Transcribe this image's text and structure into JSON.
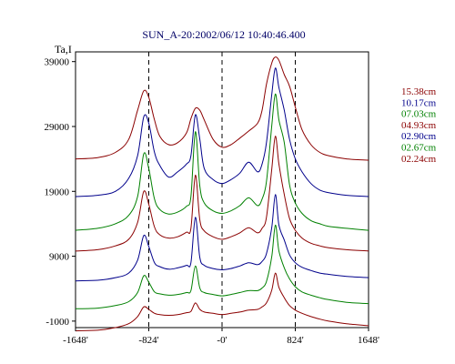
{
  "chart_data": {
    "type": "line",
    "title": "SUN_A-20:2002/06/12 10:40:46.400",
    "ylabel": "Ta,I",
    "xlabel": "",
    "x_ticks": [
      "-1648'",
      "-824'",
      "-0'",
      "824'",
      "1648'"
    ],
    "x_tick_values": [
      -1648,
      -824,
      0,
      824,
      1648
    ],
    "y_ticks": [
      "-1000",
      "9000",
      "19000",
      "29000",
      "39000"
    ],
    "y_tick_values": [
      -1000,
      9000,
      19000,
      29000,
      39000
    ],
    "xlim": [
      -1648,
      1648
    ],
    "ylim": [
      -2000,
      40500
    ],
    "reference_lines_x": [
      -824,
      0,
      824
    ],
    "grid": false,
    "legend_position": "right",
    "series": [
      {
        "name": "15.38cm",
        "color": "#8b0000",
        "x": [
          -1648,
          -1400,
          -1200,
          -1050,
          -950,
          -880,
          -824,
          -760,
          -700,
          -600,
          -500,
          -400,
          -350,
          -300,
          -250,
          -200,
          -100,
          0,
          100,
          200,
          300,
          400,
          450,
          500,
          560,
          600,
          640,
          700,
          760,
          824,
          900,
          1000,
          1100,
          1200,
          1400,
          1648
        ],
        "y": [
          24000,
          24200,
          25000,
          27000,
          31500,
          34500,
          33500,
          30000,
          27500,
          26200,
          26500,
          28000,
          30200,
          31800,
          31500,
          30000,
          27000,
          25800,
          26200,
          27200,
          28300,
          29500,
          31500,
          35500,
          38800,
          39700,
          39200,
          37000,
          35200,
          32000,
          28500,
          26200,
          25000,
          24500,
          24000,
          23800
        ]
      },
      {
        "name": "10.17cm",
        "color": "#00008b",
        "x": [
          -1648,
          -1400,
          -1200,
          -1050,
          -950,
          -880,
          -824,
          -760,
          -700,
          -600,
          -500,
          -400,
          -350,
          -300,
          -250,
          -200,
          -100,
          0,
          100,
          200,
          300,
          400,
          450,
          500,
          560,
          600,
          640,
          700,
          760,
          824,
          900,
          1000,
          1100,
          1200,
          1400,
          1648
        ],
        "y": [
          18200,
          18400,
          19000,
          21000,
          24500,
          30500,
          29500,
          25000,
          23000,
          21200,
          22000,
          23200,
          24500,
          30800,
          27000,
          22500,
          20800,
          20200,
          20800,
          21800,
          23500,
          22000,
          23200,
          26500,
          34000,
          38000,
          35000,
          31500,
          27000,
          24000,
          22000,
          20200,
          19200,
          18800,
          18400,
          18200
        ]
      },
      {
        "name": "07.03cm",
        "color": "#008000",
        "x": [
          -1648,
          -1400,
          -1200,
          -1050,
          -950,
          -880,
          -824,
          -760,
          -700,
          -600,
          -500,
          -400,
          -350,
          -300,
          -250,
          -200,
          -100,
          0,
          100,
          200,
          300,
          400,
          450,
          500,
          560,
          600,
          640,
          700,
          760,
          824,
          900,
          1000,
          1100,
          1200,
          1400,
          1648
        ],
        "y": [
          13000,
          13300,
          14000,
          15300,
          18200,
          24800,
          22500,
          17800,
          16200,
          15500,
          15800,
          16700,
          18200,
          28200,
          19800,
          17200,
          16000,
          15600,
          16000,
          16800,
          18000,
          16800,
          17800,
          20500,
          29200,
          34000,
          30000,
          26500,
          20000,
          17200,
          15600,
          14500,
          14000,
          13600,
          13300,
          13000
        ]
      },
      {
        "name": "04.93cm",
        "color": "#8b0000",
        "x": [
          -1648,
          -1400,
          -1200,
          -1050,
          -950,
          -880,
          -824,
          -760,
          -700,
          -600,
          -500,
          -400,
          -350,
          -300,
          -250,
          -200,
          -100,
          0,
          100,
          200,
          300,
          400,
          450,
          500,
          560,
          600,
          640,
          700,
          760,
          824,
          900,
          1000,
          1100,
          1200,
          1400,
          1648
        ],
        "y": [
          9800,
          10000,
          10600,
          11600,
          14200,
          19000,
          17000,
          13500,
          12300,
          11800,
          12000,
          12700,
          13300,
          21500,
          14600,
          12900,
          12000,
          11600,
          12000,
          12600,
          13400,
          12600,
          13300,
          15000,
          22500,
          27500,
          23200,
          18500,
          14800,
          13000,
          11800,
          11000,
          10600,
          10300,
          10000,
          9800
        ]
      },
      {
        "name": "02.90cm",
        "color": "#00008b",
        "x": [
          -1648,
          -1400,
          -1200,
          -1050,
          -950,
          -880,
          -824,
          -760,
          -700,
          -600,
          -500,
          -400,
          -350,
          -300,
          -250,
          -200,
          -100,
          0,
          100,
          200,
          300,
          400,
          450,
          500,
          560,
          600,
          640,
          700,
          760,
          824,
          900,
          1000,
          1100,
          1200,
          1400,
          1648
        ],
        "y": [
          5200,
          5300,
          5700,
          6400,
          8400,
          12200,
          10500,
          8000,
          7400,
          7000,
          7200,
          7600,
          8000,
          15000,
          8800,
          7600,
          7100,
          6900,
          7100,
          7500,
          8000,
          7700,
          8200,
          9400,
          13500,
          18500,
          13800,
          11500,
          9200,
          8000,
          7300,
          6800,
          6400,
          6200,
          5900,
          5700
        ]
      },
      {
        "name": "02.67cm",
        "color": "#008000",
        "x": [
          -1648,
          -1400,
          -1200,
          -1050,
          -950,
          -880,
          -824,
          -760,
          -700,
          -600,
          -500,
          -400,
          -350,
          -300,
          -250,
          -200,
          -100,
          0,
          100,
          200,
          300,
          400,
          450,
          500,
          560,
          600,
          640,
          700,
          760,
          824,
          900,
          1000,
          1100,
          1200,
          1400,
          1648
        ],
        "y": [
          900,
          1000,
          1400,
          2000,
          3400,
          6000,
          5000,
          3500,
          3200,
          3000,
          3100,
          3400,
          3700,
          7500,
          4100,
          3400,
          3100,
          2900,
          3100,
          3400,
          3700,
          3700,
          4100,
          5100,
          9000,
          13800,
          9800,
          7200,
          5500,
          4300,
          3500,
          3000,
          2600,
          2300,
          1900,
          1700
        ]
      },
      {
        "name": "02.24cm",
        "color": "#8b0000",
        "x": [
          -1648,
          -1400,
          -1200,
          -1050,
          -950,
          -880,
          -824,
          -760,
          -700,
          -600,
          -500,
          -400,
          -350,
          -300,
          -250,
          -200,
          -100,
          0,
          100,
          200,
          300,
          400,
          450,
          500,
          560,
          600,
          640,
          700,
          760,
          824,
          900,
          1000,
          1100,
          1200,
          1400,
          1648
        ],
        "y": [
          -2500,
          -2400,
          -2000,
          -1400,
          -300,
          1200,
          800,
          200,
          0,
          -100,
          0,
          300,
          500,
          1800,
          800,
          400,
          200,
          0,
          200,
          400,
          700,
          800,
          1200,
          1800,
          3800,
          6400,
          4200,
          2600,
          1400,
          700,
          200,
          -300,
          -700,
          -1000,
          -1400,
          -1700
        ]
      }
    ]
  }
}
